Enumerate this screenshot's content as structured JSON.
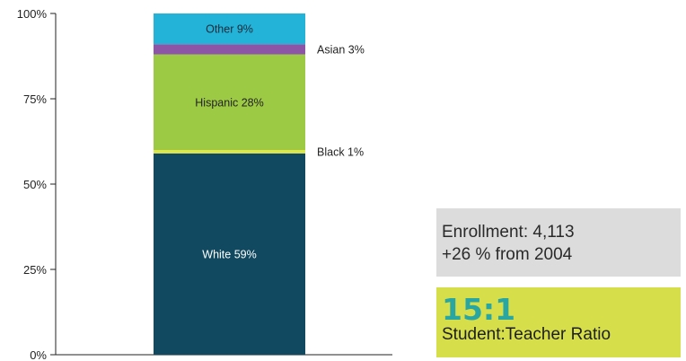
{
  "chart_data": {
    "type": "bar",
    "stacked": true,
    "ylim": [
      0,
      100
    ],
    "yticks": [
      "0%",
      "25%",
      "50%",
      "75%",
      "100%"
    ],
    "ytick_values": [
      0,
      25,
      50,
      75,
      100
    ],
    "segments": [
      {
        "name": "White",
        "value": 59,
        "label": "White 59%",
        "color": "#114a60",
        "label_color": "#ffffff"
      },
      {
        "name": "Black",
        "value": 1,
        "label": "Black 1%",
        "color": "#dde64a",
        "label_color": "#222222"
      },
      {
        "name": "Hispanic",
        "value": 28,
        "label": "Hispanic 28%",
        "color": "#9dca45",
        "label_color": "#222222"
      },
      {
        "name": "Asian",
        "value": 3,
        "label": "Asian 3%",
        "color": "#8c55a6",
        "label_color": "#222222"
      },
      {
        "name": "Other",
        "value": 9,
        "label": "Other 9%",
        "color": "#23b3d8",
        "label_color": "#1a2a3a"
      }
    ]
  },
  "info": {
    "enrollment": "Enrollment: 4,113",
    "growth": "+26 % from 2004"
  },
  "ratio": {
    "value": "15:1",
    "label": "Student:Teacher Ratio"
  }
}
